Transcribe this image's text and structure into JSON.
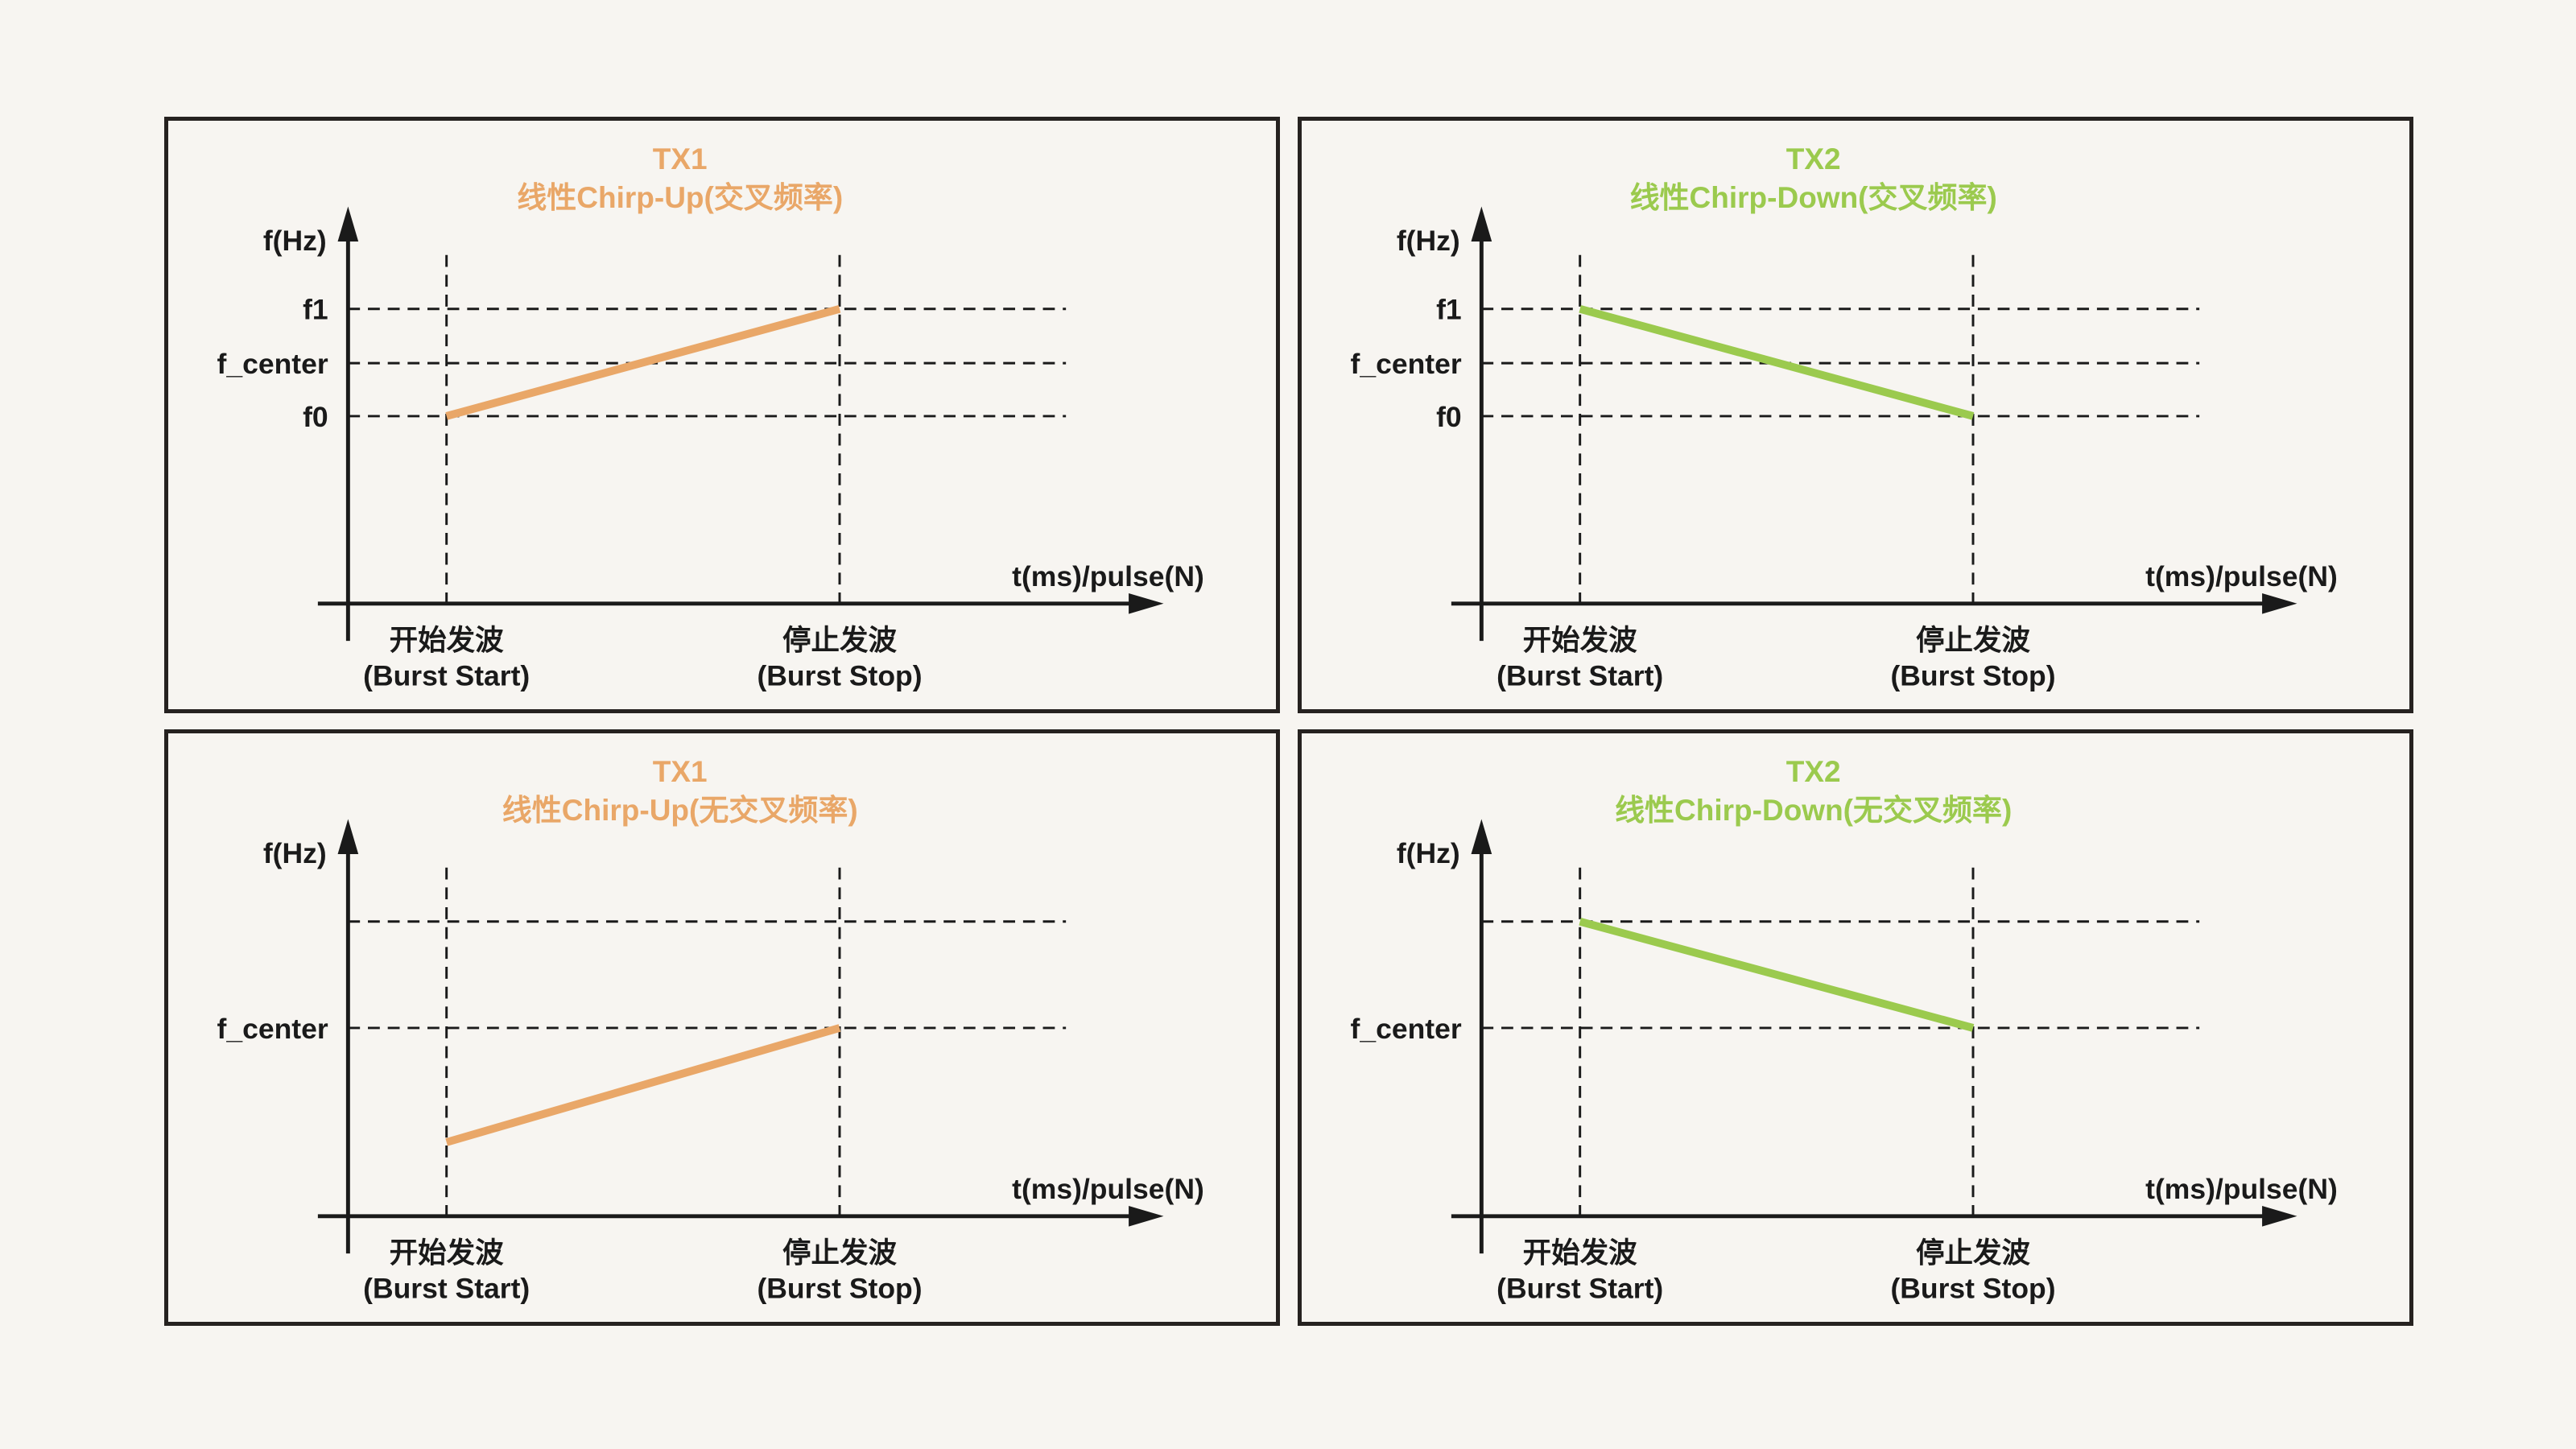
{
  "figure": {
    "background_color": "#F7F5F1",
    "panel_border_color": "#262220",
    "axis_color": "#1A1A1A",
    "accent_orange": "#E9A768",
    "accent_green": "#9BCA4E"
  },
  "shared": {
    "y_axis_label": "f(Hz)",
    "x_axis_label": "t(ms)/pulse(N)",
    "burst_start_label": [
      "开始发波",
      "(Burst Start)"
    ],
    "burst_stop_label": [
      "停止发波",
      "(Burst Stop)"
    ]
  },
  "panels": [
    {
      "name": "tx1-chirp-up-crossed",
      "title": [
        "TX1",
        "线性Chirp-Up(交叉频率)"
      ],
      "accent": "#E9A768",
      "chart_data": {
        "type": "line",
        "title": "TX1 线性Chirp-Up(交叉频率)",
        "ylabel": "f(Hz)",
        "xlabel": "t(ms)/pulse(N)",
        "x_ticks": [
          [
            "开始发波",
            "(Burst Start)"
          ],
          [
            "停止发波",
            "(Burst Stop)"
          ]
        ],
        "y_ticks": [
          {
            "label": "f1",
            "level": 0.745
          },
          {
            "label": "f_center",
            "level": 0.608
          },
          {
            "label": "f0",
            "level": 0.474
          }
        ],
        "unlabeled_gridlines": [],
        "grid": "dashed",
        "legend": "none",
        "series": [
          {
            "name": "TX1 linear chirp-up",
            "color": "#E9A768",
            "points": [
              {
                "x": "burst_start",
                "freq": "f0",
                "level": 0.474
              },
              {
                "x": "burst_stop",
                "freq": "f1",
                "level": 0.745
              }
            ]
          }
        ]
      }
    },
    {
      "name": "tx2-chirp-down-crossed",
      "title": [
        "TX2",
        "线性Chirp-Down(交叉频率)"
      ],
      "accent": "#9BCA4E",
      "chart_data": {
        "type": "line",
        "title": "TX2 线性Chirp-Down(交叉频率)",
        "ylabel": "f(Hz)",
        "xlabel": "t(ms)/pulse(N)",
        "x_ticks": [
          [
            "开始发波",
            "(Burst Start)"
          ],
          [
            "停止发波",
            "(Burst Stop)"
          ]
        ],
        "y_ticks": [
          {
            "label": "f1",
            "level": 0.745
          },
          {
            "label": "f_center",
            "level": 0.608
          },
          {
            "label": "f0",
            "level": 0.474
          }
        ],
        "unlabeled_gridlines": [],
        "grid": "dashed",
        "legend": "none",
        "series": [
          {
            "name": "TX2 linear chirp-down",
            "color": "#9BCA4E",
            "points": [
              {
                "x": "burst_start",
                "freq": "f1",
                "level": 0.745
              },
              {
                "x": "burst_stop",
                "freq": "f0",
                "level": 0.474
              }
            ]
          }
        ]
      }
    },
    {
      "name": "tx1-chirp-up-non-crossed",
      "title": [
        "TX1",
        "线性Chirp-Up(无交叉频率)"
      ],
      "accent": "#E9A768",
      "chart_data": {
        "type": "line",
        "title": "TX1 线性Chirp-Up(无交叉频率)",
        "ylabel": "f(Hz)",
        "xlabel": "t(ms)/pulse(N)",
        "x_ticks": [
          [
            "开始发波",
            "(Burst Start)"
          ],
          [
            "停止发波",
            "(Burst Stop)"
          ]
        ],
        "y_ticks": [
          {
            "label": "f_center",
            "level": 0.476
          }
        ],
        "unlabeled_gridlines": [
          0.745
        ],
        "grid": "dashed",
        "legend": "none",
        "series": [
          {
            "name": "TX1 linear chirp-up",
            "color": "#E9A768",
            "points": [
              {
                "x": "burst_start",
                "level": 0.187
              },
              {
                "x": "burst_stop",
                "freq": "f_center",
                "level": 0.476
              }
            ]
          }
        ]
      }
    },
    {
      "name": "tx2-chirp-down-non-crossed",
      "title": [
        "TX2",
        "线性Chirp-Down(无交叉频率)"
      ],
      "accent": "#9BCA4E",
      "chart_data": {
        "type": "line",
        "title": "TX2 线性Chirp-Down(无交叉频率)",
        "ylabel": "f(Hz)",
        "xlabel": "t(ms)/pulse(N)",
        "x_ticks": [
          [
            "开始发波",
            "(Burst Start)"
          ],
          [
            "停止发波",
            "(Burst Stop)"
          ]
        ],
        "y_ticks": [
          {
            "label": "f_center",
            "level": 0.476
          }
        ],
        "unlabeled_gridlines": [
          0.745
        ],
        "grid": "dashed",
        "legend": "none",
        "series": [
          {
            "name": "TX2 linear chirp-down",
            "color": "#9BCA4E",
            "points": [
              {
                "x": "burst_start",
                "level": 0.745
              },
              {
                "x": "burst_stop",
                "freq": "f_center",
                "level": 0.476
              }
            ]
          }
        ]
      }
    }
  ]
}
